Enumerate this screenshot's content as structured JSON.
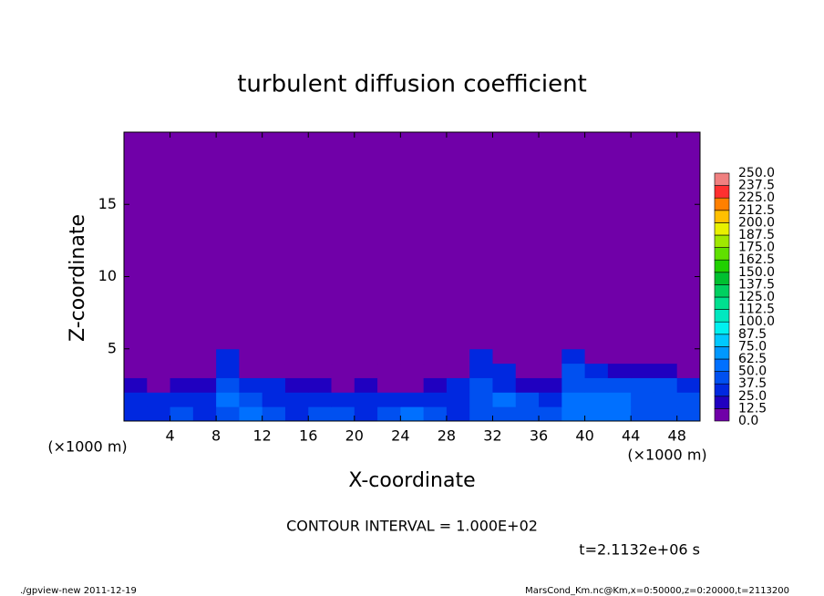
{
  "chart_data": {
    "type": "heatmap",
    "title": "turbulent diffusion coefficient",
    "xlabel": "X-coordinate",
    "ylabel": "Z-coordinate",
    "xunit": "(×1000 m)",
    "yunit": "(×1000 m)",
    "xlim": [
      0,
      50
    ],
    "ylim": [
      0,
      20
    ],
    "xticks": [
      4,
      8,
      12,
      16,
      20,
      24,
      28,
      32,
      36,
      40,
      44,
      48
    ],
    "yticks": [
      5,
      10,
      15
    ],
    "x_edges": [
      0,
      2,
      4,
      6,
      8,
      10,
      12,
      14,
      16,
      18,
      20,
      22,
      24,
      26,
      28,
      30,
      32,
      34,
      36,
      38,
      40,
      42,
      44,
      46,
      48,
      50
    ],
    "y_edges": [
      0,
      1,
      2,
      3,
      4,
      5,
      20
    ],
    "values": [
      [
        30,
        35,
        40,
        35,
        45,
        50,
        40,
        35,
        40,
        45,
        35,
        45,
        50,
        40,
        35,
        40,
        45,
        45,
        40,
        50,
        55,
        50,
        45,
        40,
        40
      ],
      [
        25,
        25,
        30,
        25,
        50,
        40,
        35,
        35,
        35,
        30,
        35,
        30,
        30,
        35,
        30,
        40,
        50,
        45,
        30,
        55,
        55,
        50,
        45,
        45,
        40
      ],
      [
        15,
        10,
        15,
        20,
        40,
        25,
        25,
        20,
        15,
        10,
        15,
        10,
        10,
        20,
        25,
        40,
        35,
        20,
        15,
        45,
        40,
        40,
        40,
        40,
        35
      ],
      [
        0,
        0,
        0,
        5,
        35,
        5,
        5,
        0,
        0,
        0,
        0,
        0,
        0,
        0,
        5,
        35,
        25,
        0,
        0,
        40,
        35,
        20,
        20,
        20,
        5
      ],
      [
        0,
        0,
        0,
        0,
        25,
        0,
        0,
        0,
        0,
        0,
        0,
        0,
        0,
        0,
        0,
        25,
        0,
        0,
        0,
        30,
        5,
        0,
        0,
        0,
        0
      ],
      [
        0,
        0,
        0,
        0,
        0,
        0,
        0,
        0,
        0,
        0,
        0,
        0,
        0,
        0,
        0,
        0,
        0,
        0,
        0,
        0,
        0,
        0,
        0,
        0,
        0
      ]
    ],
    "levels": [
      {
        "value": 0,
        "label": "0.0"
      },
      {
        "value": 12.5,
        "label": "12.5"
      },
      {
        "value": 25,
        "label": "25.0"
      },
      {
        "value": 37.5,
        "label": "37.5"
      },
      {
        "value": 50,
        "label": "50.0"
      },
      {
        "value": 62.5,
        "label": "62.5"
      },
      {
        "value": 75,
        "label": "75.0"
      },
      {
        "value": 87.5,
        "label": "87.5"
      },
      {
        "value": 100,
        "label": "100.0"
      },
      {
        "value": 112.5,
        "label": "112.5"
      },
      {
        "value": 125,
        "label": "125.0"
      },
      {
        "value": 137.5,
        "label": "137.5"
      },
      {
        "value": 150,
        "label": "150.0"
      },
      {
        "value": 162.5,
        "label": "162.5"
      },
      {
        "value": 175,
        "label": "175.0"
      },
      {
        "value": 187.5,
        "label": "187.5"
      },
      {
        "value": 200,
        "label": "200.0"
      },
      {
        "value": 212.5,
        "label": "212.5"
      },
      {
        "value": 225,
        "label": "225.0"
      },
      {
        "value": 237.5,
        "label": "237.5"
      },
      {
        "value": 250,
        "label": "250.0"
      }
    ],
    "colors": [
      "#7000a8",
      "#2000c0",
      "#0028e0",
      "#0050f0",
      "#0070ff",
      "#0098ff",
      "#00c8ff",
      "#00f0f0",
      "#00e8c0",
      "#00e090",
      "#00d060",
      "#00c030",
      "#20d000",
      "#60e000",
      "#a0e800",
      "#e8f000",
      "#ffc000",
      "#ff8000",
      "#ff3030",
      "#f08080"
    ],
    "contour_interval": "CONTOUR INTERVAL = 1.000E+02",
    "time": "t=2.1132e+06 s",
    "footer_left": "./gpview-new   2011-12-19",
    "footer_right": "MarsCond_Km.nc@Km,x=0:50000,z=0:20000,t=2113200"
  }
}
